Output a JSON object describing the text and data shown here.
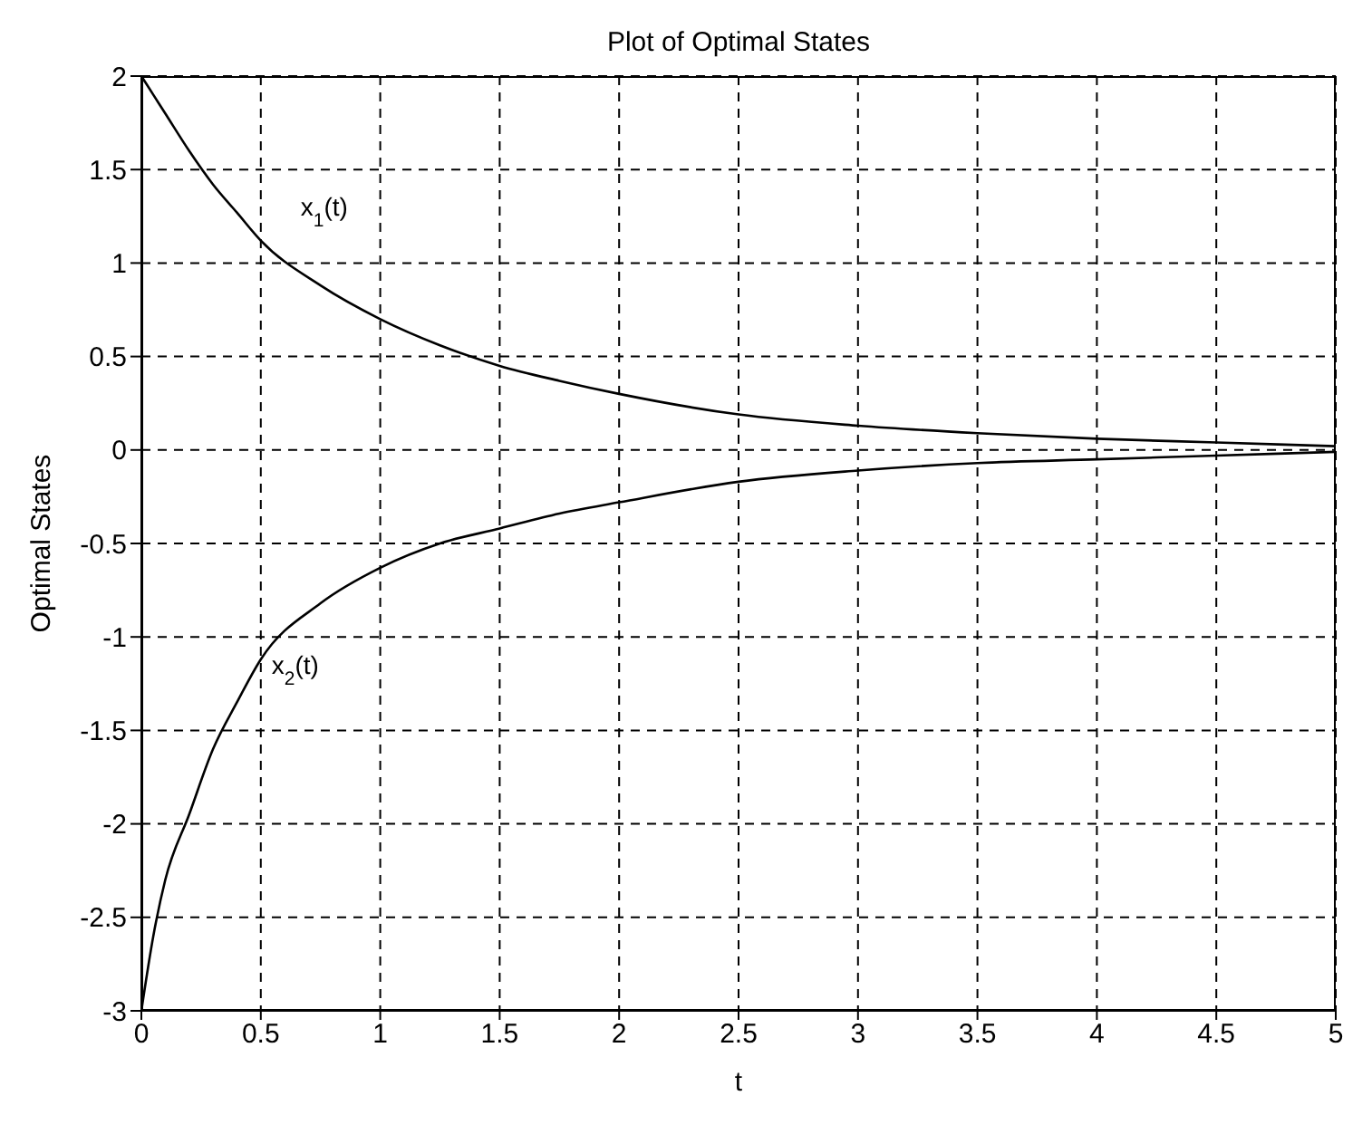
{
  "chart_data": {
    "type": "line",
    "title": "Plot of Optimal States",
    "xlabel": "t",
    "ylabel": "Optimal States",
    "x": [
      0,
      0.05,
      0.1,
      0.2,
      0.3,
      0.4,
      0.5,
      0.75,
      1,
      1.25,
      1.5,
      1.75,
      2,
      2.5,
      3,
      3.5,
      4,
      4.5,
      5
    ],
    "series": [
      {
        "name": "x$_{1}$(t)",
        "color": "#000000",
        "values": [
          2,
          1.9,
          1.8,
          1.6,
          1.42,
          1.27,
          1.12,
          0.88,
          0.7,
          0.56,
          0.45,
          0.37,
          0.3,
          0.19,
          0.13,
          0.09,
          0.06,
          0.04,
          0.02
        ]
      },
      {
        "name": "x$_{2}$(t)",
        "color": "#000000",
        "values": [
          -3,
          -2.6,
          -2.3,
          -1.95,
          -1.6,
          -1.35,
          -1.12,
          -0.82,
          -0.63,
          -0.5,
          -0.42,
          -0.34,
          -0.28,
          -0.17,
          -0.11,
          -0.07,
          -0.05,
          -0.03,
          -0.01
        ]
      }
    ],
    "xlim": [
      0,
      5
    ],
    "xticks": [
      0,
      0.5,
      1,
      1.5,
      2,
      2.5,
      3,
      3.5,
      4,
      4.5,
      5
    ],
    "ylim": [
      -3,
      2
    ],
    "yticks": [
      -3,
      -2.5,
      -2,
      -1.5,
      -1,
      -0.5,
      0,
      0.5,
      1,
      1.5,
      2
    ],
    "grid": true,
    "line_style": "solid",
    "marker": "none"
  }
}
